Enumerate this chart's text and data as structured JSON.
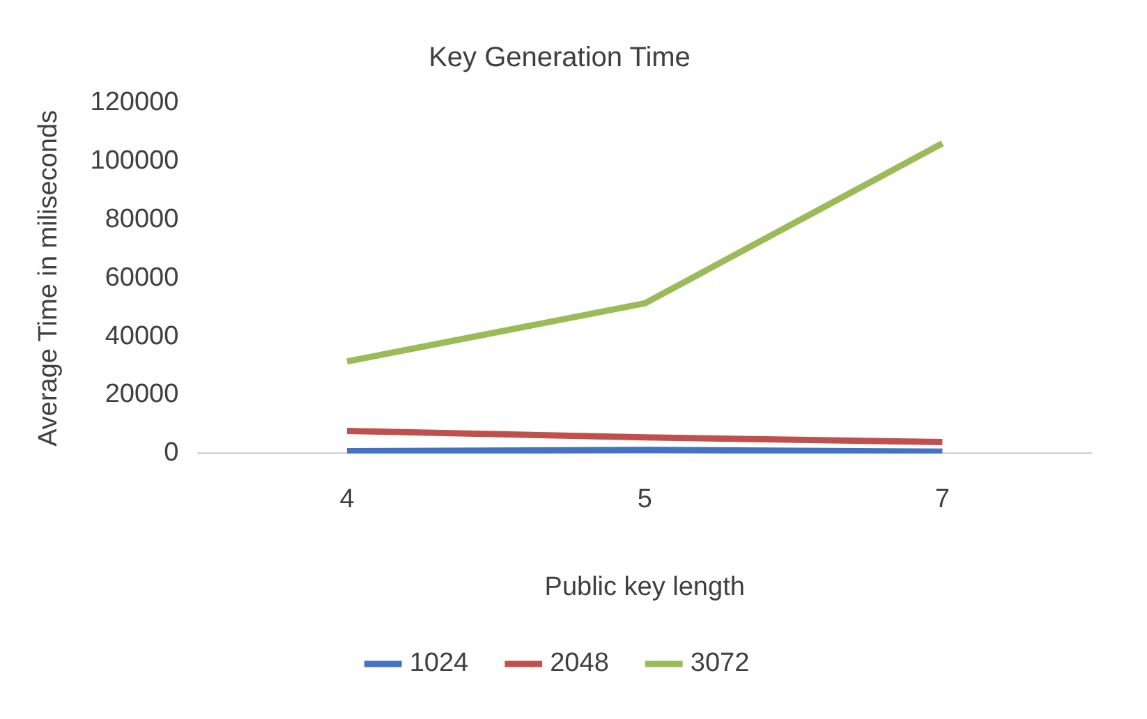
{
  "chart_data": {
    "type": "line",
    "title": "Key Generation Time",
    "xlabel": "Public key length",
    "ylabel": "Average Time in miliseconds",
    "categories": [
      "4",
      "5",
      "7"
    ],
    "series": [
      {
        "name": "1024",
        "color": "#4472c4",
        "values": [
          800,
          1200,
          600
        ]
      },
      {
        "name": "2048",
        "color": "#c0504d",
        "values": [
          7700,
          5500,
          3900
        ]
      },
      {
        "name": "3072",
        "color": "#9bbb59",
        "values": [
          31500,
          51400,
          106200
        ]
      }
    ],
    "ylim": [
      0,
      120000
    ],
    "yticks": [
      0,
      20000,
      40000,
      60000,
      80000,
      100000,
      120000
    ],
    "grid": false,
    "legend": "bottom",
    "marker": "none",
    "line_style": "solid"
  }
}
